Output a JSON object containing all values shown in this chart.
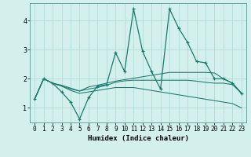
{
  "title": "",
  "xlabel": "Humidex (Indice chaleur)",
  "bg_color": "#d4f0ec",
  "grid_color": "#aad8d3",
  "line_color": "#1a7a6e",
  "xlim": [
    -0.5,
    23.5
  ],
  "ylim": [
    0.5,
    4.6
  ],
  "yticks": [
    1,
    2,
    3,
    4
  ],
  "xticks": [
    0,
    1,
    2,
    3,
    4,
    5,
    6,
    7,
    8,
    9,
    10,
    11,
    12,
    13,
    14,
    15,
    16,
    17,
    18,
    19,
    20,
    21,
    22,
    23
  ],
  "line1_x": [
    0,
    1,
    2,
    3,
    4,
    5,
    6,
    7,
    8,
    9,
    10,
    11,
    12,
    13,
    14,
    15,
    16,
    17,
    18,
    19,
    20,
    21,
    22,
    23
  ],
  "line1_y": [
    1.3,
    2.0,
    1.85,
    1.55,
    1.2,
    0.62,
    1.35,
    1.75,
    1.8,
    2.9,
    2.25,
    4.4,
    2.95,
    2.25,
    1.65,
    4.4,
    3.75,
    3.25,
    2.6,
    2.55,
    2.0,
    2.0,
    1.85,
    1.5
  ],
  "line2_x": [
    0,
    1,
    2,
    3,
    4,
    5,
    6,
    7,
    8,
    9,
    10,
    11,
    12,
    13,
    14,
    15,
    16,
    17,
    18,
    19,
    20,
    21,
    22,
    23
  ],
  "line2_y": [
    1.3,
    2.0,
    1.85,
    1.75,
    1.65,
    1.58,
    1.72,
    1.78,
    1.85,
    1.92,
    1.97,
    2.02,
    2.07,
    2.12,
    2.17,
    2.22,
    2.22,
    2.22,
    2.22,
    2.22,
    2.2,
    2.0,
    1.85,
    1.5
  ],
  "line3_x": [
    0,
    1,
    2,
    3,
    4,
    5,
    6,
    7,
    8,
    9,
    10,
    11,
    12,
    13,
    14,
    15,
    16,
    17,
    18,
    19,
    20,
    21,
    22,
    23
  ],
  "line3_y": [
    1.3,
    2.0,
    1.85,
    1.78,
    1.68,
    1.58,
    1.65,
    1.7,
    1.78,
    1.88,
    1.93,
    1.95,
    1.95,
    1.95,
    1.95,
    1.95,
    1.95,
    1.95,
    1.92,
    1.88,
    1.85,
    1.85,
    1.8,
    1.5
  ],
  "line4_x": [
    0,
    1,
    2,
    3,
    4,
    5,
    6,
    7,
    8,
    9,
    10,
    11,
    12,
    13,
    14,
    15,
    16,
    17,
    18,
    19,
    20,
    21,
    22,
    23
  ],
  "line4_y": [
    1.3,
    2.0,
    1.85,
    1.75,
    1.6,
    1.5,
    1.55,
    1.6,
    1.65,
    1.7,
    1.7,
    1.7,
    1.65,
    1.6,
    1.55,
    1.5,
    1.45,
    1.4,
    1.35,
    1.3,
    1.25,
    1.2,
    1.15,
    1.0
  ]
}
